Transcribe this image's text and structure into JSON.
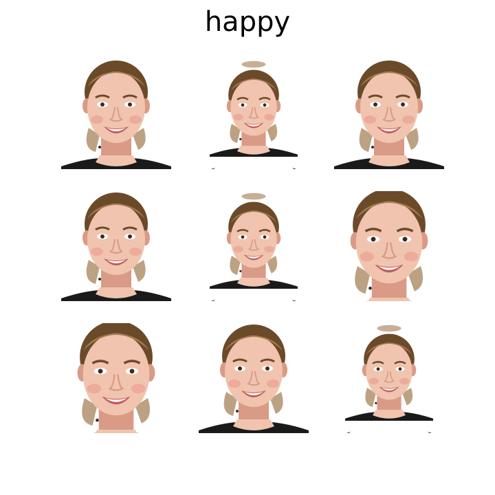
{
  "figure": {
    "title": "happy",
    "grid": {
      "rows": 3,
      "cols": 3
    },
    "colors": {
      "background": "#ffffff",
      "skin": "#f0c4ae",
      "skin_shadow": "#d99a86",
      "hair": "#6b4a2a",
      "hair_highlight": "#a07a4e",
      "shirt": "#1a1a1a",
      "lips": "#c45a5a",
      "teeth": "#fafafa",
      "eyes": "#3a2a2a"
    },
    "panels": [
      {
        "id": "panel-1",
        "variant": "original",
        "content": "smiling-face-photo"
      },
      {
        "id": "panel-2",
        "variant": "scaled-down-mirror-edges",
        "content": "smiling-face-photo"
      },
      {
        "id": "panel-3",
        "variant": "original",
        "content": "smiling-face-photo"
      },
      {
        "id": "panel-4",
        "variant": "original",
        "content": "smiling-face-photo"
      },
      {
        "id": "panel-5",
        "variant": "scaled-down-mirror-edges",
        "content": "smiling-face-photo"
      },
      {
        "id": "panel-6",
        "variant": "zoomed-in",
        "content": "smiling-face-photo"
      },
      {
        "id": "panel-7",
        "variant": "zoomed-in",
        "content": "smiling-face-photo"
      },
      {
        "id": "panel-8",
        "variant": "original",
        "content": "smiling-face-photo"
      },
      {
        "id": "panel-9",
        "variant": "scaled-down-mirror-edges",
        "content": "smiling-face-photo"
      }
    ]
  }
}
